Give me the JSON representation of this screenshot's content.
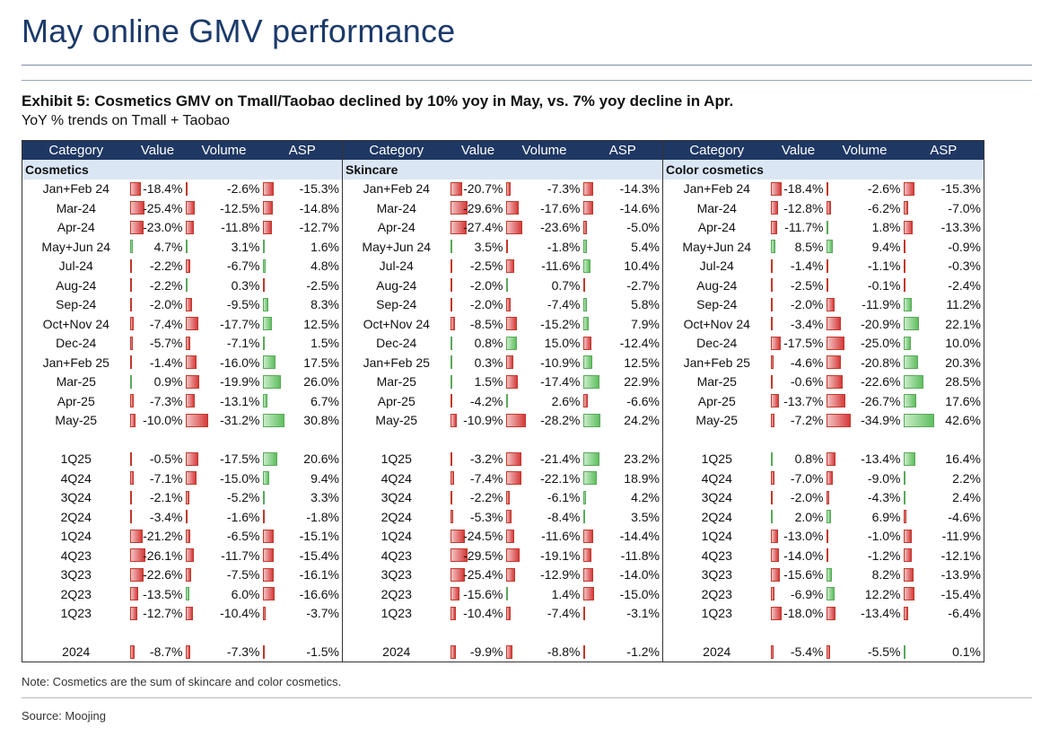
{
  "page_title": "May online GMV performance",
  "exhibit_title": "Exhibit 5: Cosmetics GMV on Tmall/Taobao declined by 10% yoy in May, vs. 7% yoy decline in Apr.",
  "subtitle": "YoY % trends on Tmall + Taobao",
  "headers": [
    "Category",
    "Value",
    "Volume",
    "ASP",
    "Category",
    "Value",
    "Volume",
    "ASP",
    "Category",
    "Value",
    "Volume",
    "ASP"
  ],
  "sections": [
    "Cosmetics",
    "Skincare",
    "Color cosmetics"
  ],
  "colors": {
    "header_bg": "#1f3863",
    "section_bg": "#dbe6f4",
    "negative": "#d63a3a",
    "positive": "#5fbf5f",
    "title": "#1b3a6b"
  },
  "rows": [
    {
      "labels": [
        "Jan+Feb 24",
        "Jan+Feb 24",
        "Jan+Feb 24"
      ],
      "values": [
        [
          -18.4,
          -2.6,
          -15.3
        ],
        [
          -20.7,
          -7.3,
          -14.3
        ],
        [
          -18.4,
          -2.6,
          -15.3
        ]
      ]
    },
    {
      "labels": [
        "Mar-24",
        "Mar-24",
        "Mar-24"
      ],
      "values": [
        [
          -25.4,
          -12.5,
          -14.8
        ],
        [
          -29.6,
          -17.6,
          -14.6
        ],
        [
          -12.8,
          -6.2,
          -7.0
        ]
      ]
    },
    {
      "labels": [
        "Apr-24",
        "Apr-24",
        "Apr-24"
      ],
      "values": [
        [
          -23.0,
          -11.8,
          -12.7
        ],
        [
          -27.4,
          -23.6,
          -5.0
        ],
        [
          -11.7,
          1.8,
          -13.3
        ]
      ]
    },
    {
      "labels": [
        "May+Jun 24",
        "May+Jun 24",
        "May+Jun 24"
      ],
      "values": [
        [
          4.7,
          3.1,
          1.6
        ],
        [
          3.5,
          -1.8,
          5.4
        ],
        [
          8.5,
          9.4,
          -0.9
        ]
      ]
    },
    {
      "labels": [
        "Jul-24",
        "Jul-24",
        "Jul-24"
      ],
      "values": [
        [
          -2.2,
          -6.7,
          4.8
        ],
        [
          -2.5,
          -11.6,
          10.4
        ],
        [
          -1.4,
          -1.1,
          -0.3
        ]
      ]
    },
    {
      "labels": [
        "Aug-24",
        "Aug-24",
        "Aug-24"
      ],
      "values": [
        [
          -2.2,
          0.3,
          -2.5
        ],
        [
          -2.0,
          0.7,
          -2.7
        ],
        [
          -2.5,
          -0.1,
          -2.4
        ]
      ]
    },
    {
      "labels": [
        "Sep-24",
        "Sep-24",
        "Sep-24"
      ],
      "values": [
        [
          -2.0,
          -9.5,
          8.3
        ],
        [
          -2.0,
          -7.4,
          5.8
        ],
        [
          -2.0,
          -11.9,
          11.2
        ]
      ]
    },
    {
      "labels": [
        "Oct+Nov 24",
        "Oct+Nov 24",
        "Oct+Nov 24"
      ],
      "values": [
        [
          -7.4,
          -17.7,
          12.5
        ],
        [
          -8.5,
          -15.2,
          7.9
        ],
        [
          -3.4,
          -20.9,
          22.1
        ]
      ]
    },
    {
      "labels": [
        "Dec-24",
        "Dec-24",
        "Dec-24"
      ],
      "values": [
        [
          -5.7,
          -7.1,
          1.5
        ],
        [
          0.8,
          15.0,
          -12.4
        ],
        [
          -17.5,
          -25.0,
          10.0
        ]
      ]
    },
    {
      "labels": [
        "Jan+Feb 25",
        "Jan+Feb 25",
        "Jan+Feb 25"
      ],
      "values": [
        [
          -1.4,
          -16.0,
          17.5
        ],
        [
          0.3,
          -10.9,
          12.5
        ],
        [
          -4.6,
          -20.8,
          20.3
        ]
      ]
    },
    {
      "labels": [
        "Mar-25",
        "Mar-25",
        "Mar-25"
      ],
      "values": [
        [
          0.9,
          -19.9,
          26.0
        ],
        [
          1.5,
          -17.4,
          22.9
        ],
        [
          -0.6,
          -22.6,
          28.5
        ]
      ]
    },
    {
      "labels": [
        "Apr-25",
        "Apr-25",
        "Apr-25"
      ],
      "values": [
        [
          -7.3,
          -13.1,
          6.7
        ],
        [
          -4.2,
          2.6,
          -6.6
        ],
        [
          -13.7,
          -26.7,
          17.6
        ]
      ]
    },
    {
      "labels": [
        "May-25",
        "May-25",
        "May-25"
      ],
      "values": [
        [
          -10.0,
          -31.2,
          30.8
        ],
        [
          -10.9,
          -28.2,
          24.2
        ],
        [
          -7.2,
          -34.9,
          42.6
        ]
      ]
    },
    {
      "gap": true
    },
    {
      "labels": [
        "1Q25",
        "1Q25",
        "1Q25"
      ],
      "values": [
        [
          -0.5,
          -17.5,
          20.6
        ],
        [
          -3.2,
          -21.4,
          23.2
        ],
        [
          0.8,
          -13.4,
          16.4
        ]
      ]
    },
    {
      "labels": [
        "4Q24",
        "4Q24",
        "4Q24"
      ],
      "values": [
        [
          -7.1,
          -15.0,
          9.4
        ],
        [
          -7.4,
          -22.1,
          18.9
        ],
        [
          -7.0,
          -9.0,
          2.2
        ]
      ]
    },
    {
      "labels": [
        "3Q24",
        "3Q24",
        "3Q24"
      ],
      "values": [
        [
          -2.1,
          -5.2,
          3.3
        ],
        [
          -2.2,
          -6.1,
          4.2
        ],
        [
          -2.0,
          -4.3,
          2.4
        ]
      ]
    },
    {
      "labels": [
        "2Q24",
        "2Q24",
        "2Q24"
      ],
      "values": [
        [
          -3.4,
          -1.6,
          -1.8
        ],
        [
          -5.3,
          -8.4,
          3.5
        ],
        [
          2.0,
          6.9,
          -4.6
        ]
      ]
    },
    {
      "labels": [
        "1Q24",
        "1Q24",
        "1Q24"
      ],
      "values": [
        [
          -21.2,
          -6.5,
          -15.1
        ],
        [
          -24.5,
          -11.6,
          -14.4
        ],
        [
          -13.0,
          -1.0,
          -11.9
        ]
      ]
    },
    {
      "labels": [
        "4Q23",
        "4Q23",
        "4Q23"
      ],
      "values": [
        [
          -26.1,
          -11.7,
          -15.4
        ],
        [
          -29.5,
          -19.1,
          -11.8
        ],
        [
          -14.0,
          -1.2,
          -12.1
        ]
      ]
    },
    {
      "labels": [
        "3Q23",
        "3Q23",
        "3Q23"
      ],
      "values": [
        [
          -22.6,
          -7.5,
          -16.1
        ],
        [
          -25.4,
          -12.9,
          -14.0
        ],
        [
          -15.6,
          8.2,
          -13.9
        ]
      ]
    },
    {
      "labels": [
        "2Q23",
        "2Q23",
        "2Q23"
      ],
      "values": [
        [
          -13.5,
          6.0,
          -16.6
        ],
        [
          -15.6,
          1.4,
          -15.0
        ],
        [
          -6.9,
          12.2,
          -15.4
        ]
      ]
    },
    {
      "labels": [
        "1Q23",
        "1Q23",
        "1Q23"
      ],
      "values": [
        [
          -12.7,
          -10.4,
          -3.7
        ],
        [
          -10.4,
          -7.4,
          -3.1
        ],
        [
          -18.0,
          -13.4,
          -6.4
        ]
      ]
    },
    {
      "gap": true
    },
    {
      "labels": [
        "2024",
        "2024",
        "2024"
      ],
      "values": [
        [
          -8.7,
          -7.3,
          -1.5
        ],
        [
          -9.9,
          -8.8,
          -1.2
        ],
        [
          -5.4,
          -5.5,
          0.1
        ]
      ]
    }
  ],
  "note": "Note: Cosmetics are the sum of skincare and color cosmetics.",
  "source": "Source: Moojing"
}
